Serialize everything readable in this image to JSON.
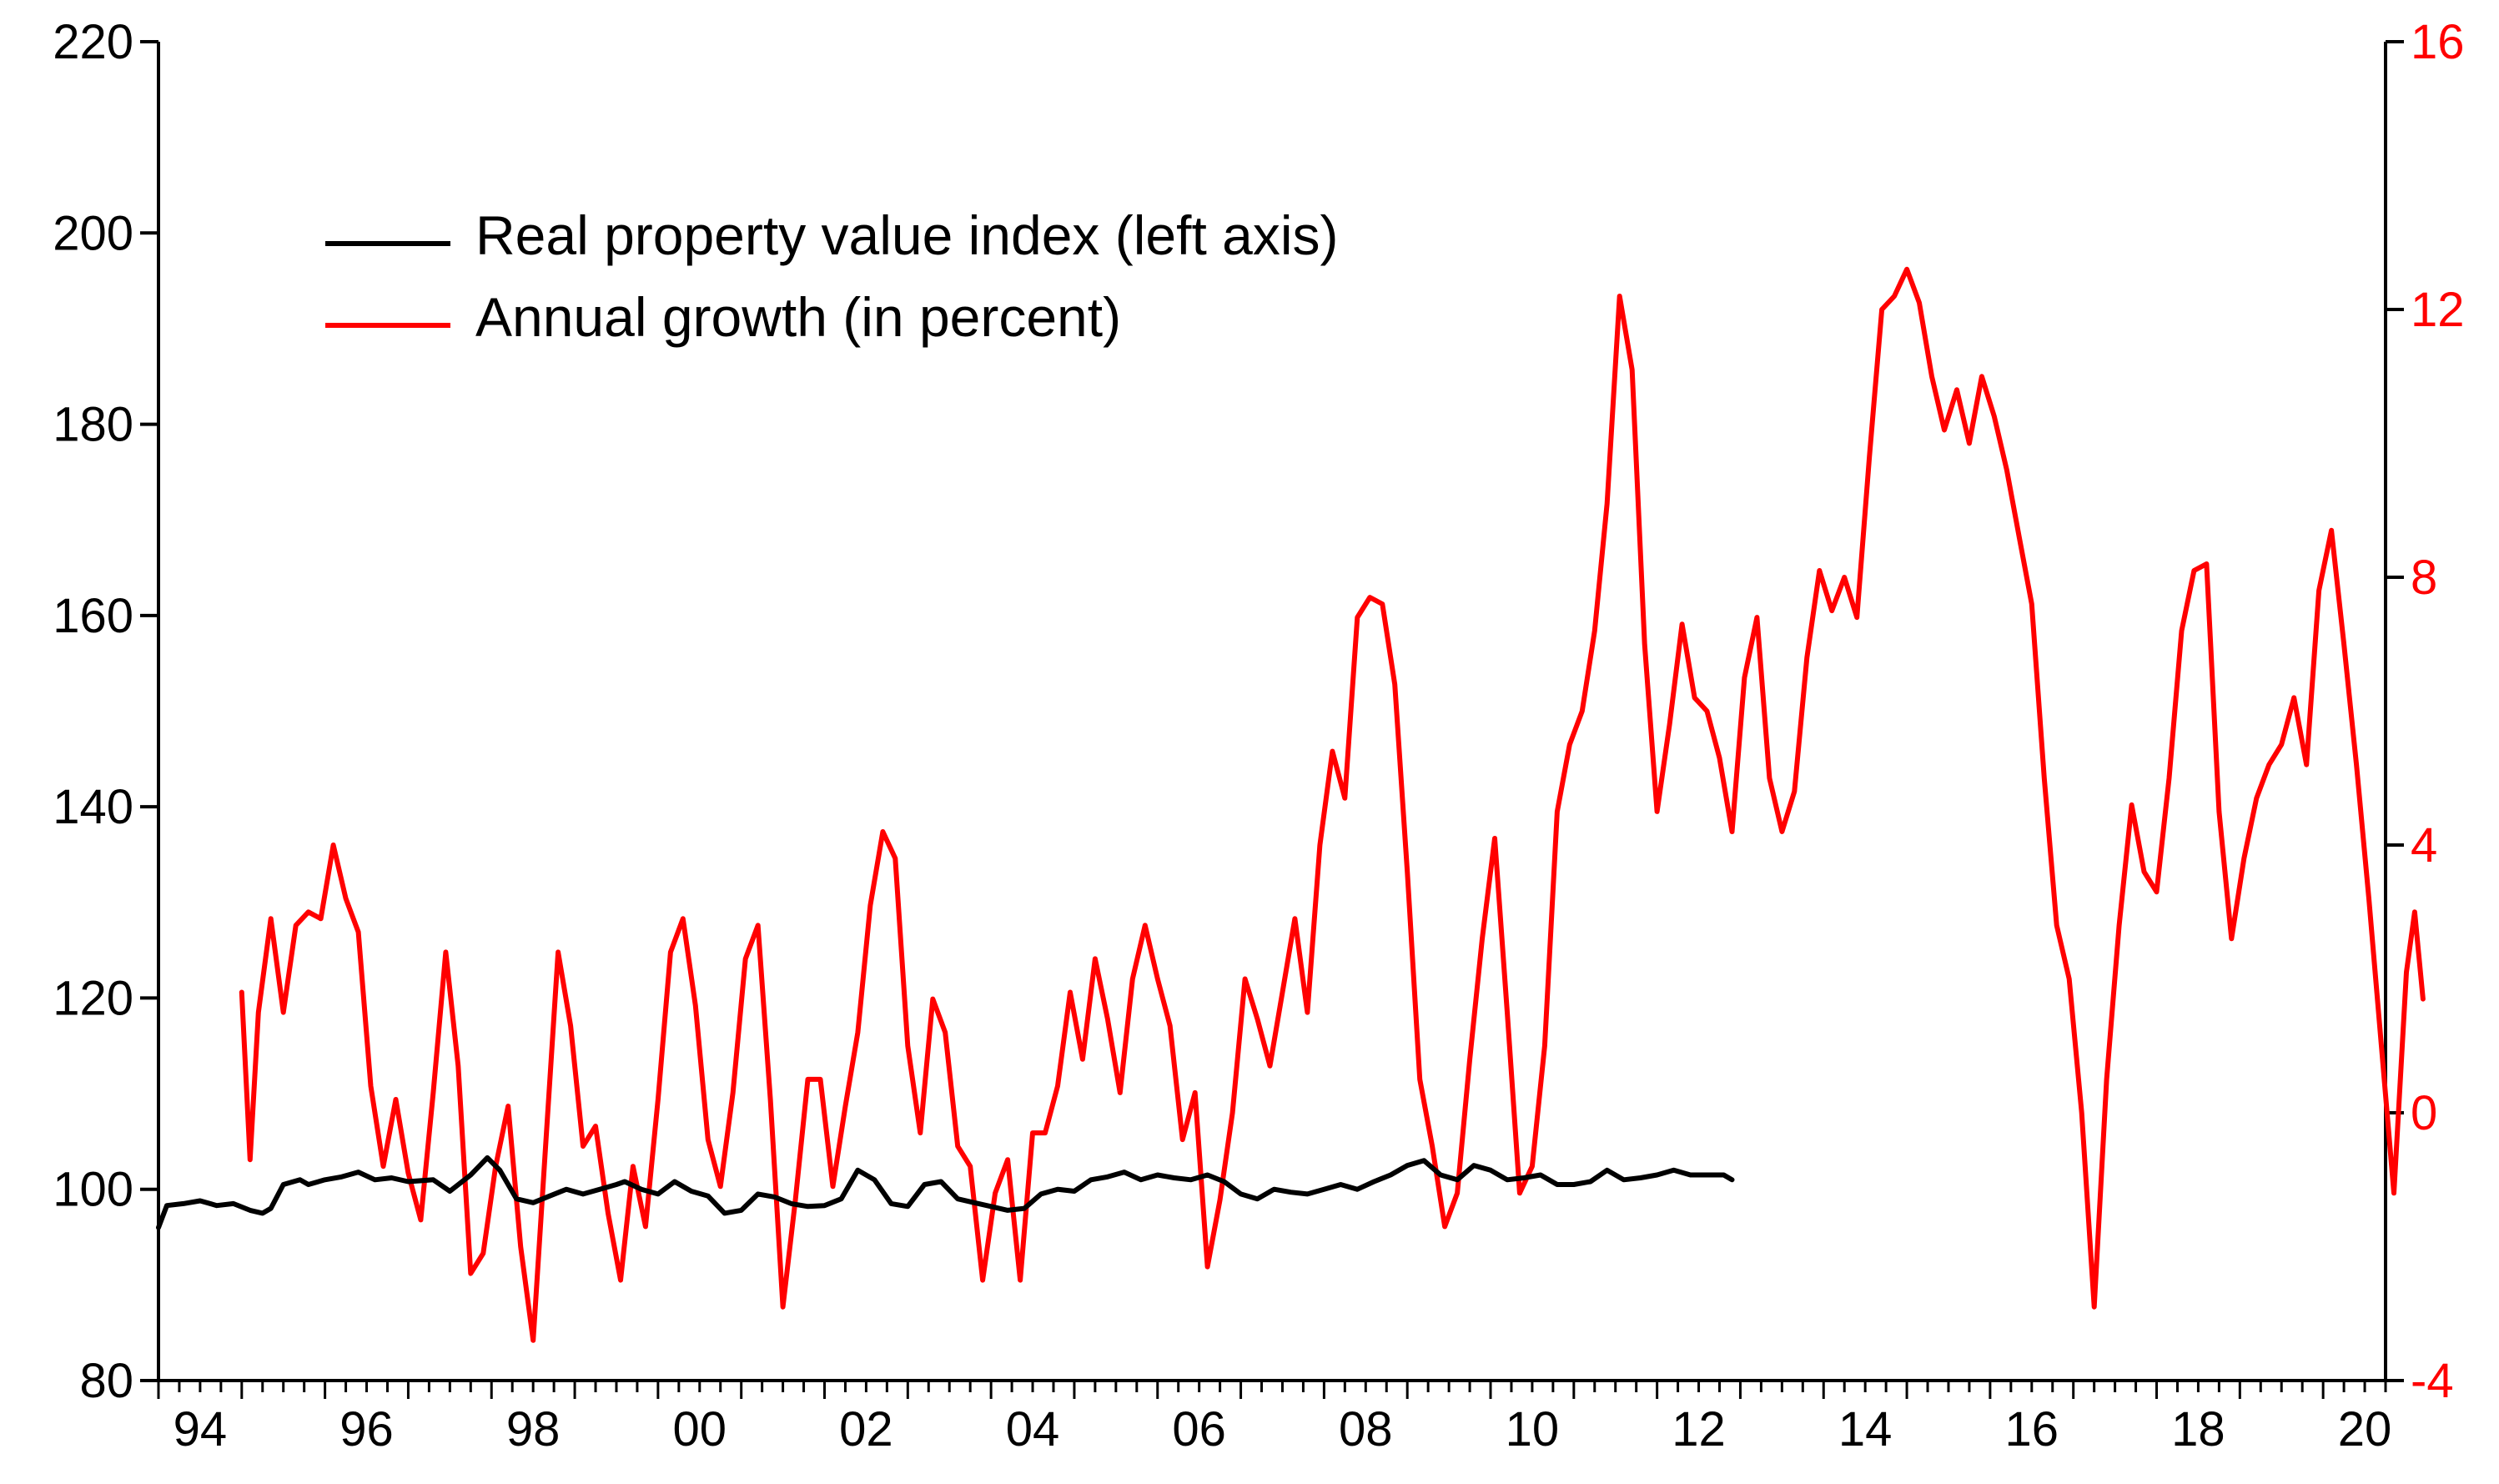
{
  "chart_data": {
    "type": "line",
    "title": "",
    "xlabel": "",
    "x_range": [
      1994.0,
      2020.75
    ],
    "x_ticks": [
      {
        "value": 1994.5,
        "label": "94"
      },
      {
        "value": 1996.5,
        "label": "96"
      },
      {
        "value": 1998.5,
        "label": "98"
      },
      {
        "value": 2000.5,
        "label": "00"
      },
      {
        "value": 2002.5,
        "label": "02"
      },
      {
        "value": 2004.5,
        "label": "04"
      },
      {
        "value": 2006.5,
        "label": "06"
      },
      {
        "value": 2008.5,
        "label": "08"
      },
      {
        "value": 2010.5,
        "label": "10"
      },
      {
        "value": 2012.5,
        "label": "12"
      },
      {
        "value": 2014.5,
        "label": "14"
      },
      {
        "value": 2016.5,
        "label": "16"
      },
      {
        "value": 2018.5,
        "label": "18"
      },
      {
        "value": 2020.5,
        "label": "20"
      }
    ],
    "left_axis": {
      "label": "",
      "ylim": [
        80,
        220
      ],
      "ticks": [
        "80",
        "100",
        "120",
        "140",
        "160",
        "180",
        "200",
        "220"
      ],
      "color": "#000000"
    },
    "right_axis": {
      "label": "",
      "ylim": [
        -4,
        16
      ],
      "ticks": [
        "-4",
        "0",
        "4",
        "8",
        "12",
        "16"
      ],
      "color": "#ff0000"
    },
    "legend": {
      "placement": "top-left",
      "entries": [
        {
          "name": "Real property value index (left axis)",
          "color": "#000000"
        },
        {
          "name": "Annual growth (in percent)",
          "color": "#ff0000"
        }
      ]
    },
    "series": [
      {
        "name": "Real property value index (left axis)",
        "axis": "left",
        "color": "#000000",
        "points": [
          [
            1994.0,
            96
          ],
          [
            1994.1,
            98.3
          ],
          [
            1994.3,
            98.5
          ],
          [
            1994.5,
            98.8
          ],
          [
            1994.7,
            98.3
          ],
          [
            1994.9,
            98.5
          ],
          [
            1995.1,
            97.8
          ],
          [
            1995.25,
            97.5
          ],
          [
            1995.35,
            98
          ],
          [
            1995.5,
            100.5
          ],
          [
            1995.7,
            101
          ],
          [
            1995.8,
            100.5
          ],
          [
            1996.0,
            101
          ],
          [
            1996.2,
            101.3
          ],
          [
            1996.4,
            101.8
          ],
          [
            1996.6,
            101
          ],
          [
            1996.8,
            101.2
          ],
          [
            1997.0,
            100.8
          ],
          [
            1997.3,
            101
          ],
          [
            1997.5,
            99.8
          ],
          [
            1997.75,
            101.5
          ],
          [
            1997.95,
            103.3
          ],
          [
            1998.1,
            102
          ],
          [
            1998.3,
            99
          ],
          [
            1998.5,
            98.6
          ],
          [
            1998.7,
            99.3
          ],
          [
            1998.9,
            100
          ],
          [
            1999.1,
            99.5
          ],
          [
            1999.3,
            100
          ],
          [
            1999.5,
            100.5
          ],
          [
            1999.6,
            100.8
          ],
          [
            1999.8,
            100
          ],
          [
            2000.0,
            99.5
          ],
          [
            2000.2,
            100.8
          ],
          [
            2000.4,
            99.8
          ],
          [
            2000.6,
            99.3
          ],
          [
            2000.8,
            97.5
          ],
          [
            2001.0,
            97.8
          ],
          [
            2001.2,
            99.5
          ],
          [
            2001.4,
            99.2
          ],
          [
            2001.6,
            98.5
          ],
          [
            2001.8,
            98.2
          ],
          [
            2002.0,
            98.3
          ],
          [
            2002.2,
            99
          ],
          [
            2002.4,
            102
          ],
          [
            2002.6,
            101
          ],
          [
            2002.8,
            98.5
          ],
          [
            2003.0,
            98.2
          ],
          [
            2003.2,
            100.5
          ],
          [
            2003.4,
            100.8
          ],
          [
            2003.6,
            99
          ],
          [
            2003.8,
            98.6
          ],
          [
            2004.0,
            98.2
          ],
          [
            2004.2,
            97.8
          ],
          [
            2004.4,
            98
          ],
          [
            2004.6,
            99.5
          ],
          [
            2004.8,
            100
          ],
          [
            2005.0,
            99.8
          ],
          [
            2005.2,
            101
          ],
          [
            2005.4,
            101.3
          ],
          [
            2005.6,
            101.8
          ],
          [
            2005.8,
            101
          ],
          [
            2006.0,
            101.5
          ],
          [
            2006.2,
            101.2
          ],
          [
            2006.4,
            101
          ],
          [
            2006.6,
            101.5
          ],
          [
            2006.8,
            100.8
          ],
          [
            2007.0,
            99.5
          ],
          [
            2007.2,
            99
          ],
          [
            2007.4,
            100
          ],
          [
            2007.6,
            99.7
          ],
          [
            2007.8,
            99.5
          ],
          [
            2008.0,
            100
          ],
          [
            2008.2,
            100.5
          ],
          [
            2008.4,
            100
          ],
          [
            2008.6,
            100.8
          ],
          [
            2008.8,
            101.5
          ],
          [
            2009.0,
            102.5
          ],
          [
            2009.2,
            103
          ],
          [
            2009.4,
            101.5
          ],
          [
            2009.6,
            101
          ],
          [
            2009.8,
            102.5
          ],
          [
            2010.0,
            102
          ],
          [
            2010.2,
            101
          ],
          [
            2010.4,
            101.2
          ],
          [
            2010.6,
            101.5
          ],
          [
            2010.8,
            100.5
          ],
          [
            2011.0,
            100.5
          ],
          [
            2011.2,
            100.8
          ],
          [
            2011.4,
            102
          ],
          [
            2011.6,
            101
          ],
          [
            2011.8,
            101.2
          ],
          [
            2012.0,
            101.5
          ],
          [
            2012.2,
            102
          ],
          [
            2012.4,
            101.5
          ],
          [
            2012.6,
            101.5
          ],
          [
            2012.8,
            101.5
          ],
          [
            2012.9,
            101
          ]
        ]
      },
      {
        "name": "Annual growth (in percent)",
        "axis": "right",
        "color": "#ff0000",
        "points": [
          [
            1995.0,
            1.8
          ],
          [
            1995.1,
            -0.7
          ],
          [
            1995.2,
            1.5
          ],
          [
            1995.35,
            2.9
          ],
          [
            1995.5,
            1.5
          ],
          [
            1995.65,
            2.8
          ],
          [
            1995.8,
            3.0
          ],
          [
            1995.95,
            2.9
          ],
          [
            1996.1,
            4.0
          ],
          [
            1996.25,
            3.2
          ],
          [
            1996.4,
            2.7
          ],
          [
            1996.55,
            0.4
          ],
          [
            1996.7,
            -0.8
          ],
          [
            1996.85,
            0.2
          ],
          [
            1997.0,
            -0.9
          ],
          [
            1997.15,
            -1.6
          ],
          [
            1997.3,
            0.3
          ],
          [
            1997.45,
            2.4
          ],
          [
            1997.6,
            0.7
          ],
          [
            1997.75,
            -2.4
          ],
          [
            1997.9,
            -2.1
          ],
          [
            1998.05,
            -0.8
          ],
          [
            1998.2,
            0.1
          ],
          [
            1998.35,
            -2.0
          ],
          [
            1998.5,
            -3.4
          ],
          [
            1998.65,
            -0.5
          ],
          [
            1998.8,
            2.4
          ],
          [
            1998.95,
            1.3
          ],
          [
            1999.1,
            -0.5
          ],
          [
            1999.25,
            -0.2
          ],
          [
            1999.4,
            -1.5
          ],
          [
            1999.55,
            -2.5
          ],
          [
            1999.7,
            -0.8
          ],
          [
            1999.85,
            -1.7
          ],
          [
            2000.0,
            0.2
          ],
          [
            2000.15,
            2.4
          ],
          [
            2000.3,
            2.9
          ],
          [
            2000.45,
            1.6
          ],
          [
            2000.6,
            -0.4
          ],
          [
            2000.75,
            -1.1
          ],
          [
            2000.9,
            0.3
          ],
          [
            2001.05,
            2.3
          ],
          [
            2001.2,
            2.8
          ],
          [
            2001.35,
            0.2
          ],
          [
            2001.5,
            -2.9
          ],
          [
            2001.65,
            -1.3
          ],
          [
            2001.8,
            0.5
          ],
          [
            2001.95,
            0.5
          ],
          [
            2002.1,
            -1.1
          ],
          [
            2002.25,
            0.1
          ],
          [
            2002.4,
            1.2
          ],
          [
            2002.55,
            3.1
          ],
          [
            2002.7,
            4.2
          ],
          [
            2002.85,
            3.8
          ],
          [
            2003.0,
            1.0
          ],
          [
            2003.15,
            -0.3
          ],
          [
            2003.3,
            1.7
          ],
          [
            2003.45,
            1.2
          ],
          [
            2003.6,
            -0.5
          ],
          [
            2003.75,
            -0.8
          ],
          [
            2003.9,
            -2.5
          ],
          [
            2004.05,
            -1.2
          ],
          [
            2004.2,
            -0.7
          ],
          [
            2004.35,
            -2.5
          ],
          [
            2004.5,
            -0.3
          ],
          [
            2004.65,
            -0.3
          ],
          [
            2004.8,
            0.4
          ],
          [
            2004.95,
            1.8
          ],
          [
            2005.1,
            0.8
          ],
          [
            2005.25,
            2.3
          ],
          [
            2005.4,
            1.4
          ],
          [
            2005.55,
            0.3
          ],
          [
            2005.7,
            2.0
          ],
          [
            2005.85,
            2.8
          ],
          [
            2006.0,
            2.0
          ],
          [
            2006.15,
            1.3
          ],
          [
            2006.3,
            -0.4
          ],
          [
            2006.45,
            0.3
          ],
          [
            2006.6,
            -2.3
          ],
          [
            2006.75,
            -1.3
          ],
          [
            2006.9,
            0.0
          ],
          [
            2007.05,
            2.0
          ],
          [
            2007.2,
            1.4
          ],
          [
            2007.35,
            0.7
          ],
          [
            2007.5,
            1.8
          ],
          [
            2007.65,
            2.9
          ],
          [
            2007.8,
            1.5
          ],
          [
            2007.95,
            4.0
          ],
          [
            2008.1,
            5.4
          ],
          [
            2008.25,
            4.7
          ],
          [
            2008.4,
            7.4
          ],
          [
            2008.55,
            7.7
          ],
          [
            2008.7,
            7.6
          ],
          [
            2008.85,
            6.4
          ],
          [
            2009.0,
            3.6
          ],
          [
            2009.15,
            0.5
          ],
          [
            2009.3,
            -0.5
          ],
          [
            2009.45,
            -1.7
          ],
          [
            2009.6,
            -1.2
          ],
          [
            2009.75,
            0.8
          ],
          [
            2009.9,
            2.6
          ],
          [
            2010.05,
            4.1
          ],
          [
            2010.2,
            1.5
          ],
          [
            2010.35,
            -1.2
          ],
          [
            2010.5,
            -0.8
          ],
          [
            2010.65,
            1.0
          ],
          [
            2010.8,
            4.5
          ],
          [
            2010.95,
            5.5
          ],
          [
            2011.1,
            6.0
          ],
          [
            2011.25,
            7.2
          ],
          [
            2011.4,
            9.1
          ],
          [
            2011.55,
            12.2
          ],
          [
            2011.7,
            11.1
          ],
          [
            2011.85,
            7.0
          ],
          [
            2012.0,
            4.5
          ],
          [
            2012.15,
            5.8
          ],
          [
            2012.3,
            7.3
          ],
          [
            2012.45,
            6.2
          ],
          [
            2012.6,
            6.0
          ],
          [
            2012.75,
            5.3
          ],
          [
            2012.9,
            4.2
          ],
          [
            2013.05,
            6.5
          ],
          [
            2013.2,
            7.4
          ],
          [
            2013.35,
            5.0
          ],
          [
            2013.5,
            4.2
          ],
          [
            2013.65,
            4.8
          ],
          [
            2013.8,
            6.8
          ],
          [
            2013.95,
            8.1
          ],
          [
            2014.1,
            7.5
          ],
          [
            2014.25,
            8.0
          ],
          [
            2014.4,
            7.4
          ],
          [
            2014.55,
            9.8
          ],
          [
            2014.7,
            12.0
          ],
          [
            2014.85,
            12.2
          ],
          [
            2015.0,
            12.6
          ],
          [
            2015.15,
            12.1
          ],
          [
            2015.3,
            11.0
          ],
          [
            2015.45,
            10.2
          ],
          [
            2015.6,
            10.8
          ],
          [
            2015.75,
            10.0
          ],
          [
            2015.9,
            11.0
          ],
          [
            2016.05,
            10.4
          ],
          [
            2016.2,
            9.6
          ],
          [
            2016.35,
            8.6
          ],
          [
            2016.5,
            7.6
          ],
          [
            2016.65,
            5.0
          ],
          [
            2016.8,
            2.8
          ],
          [
            2016.95,
            2.0
          ],
          [
            2017.1,
            0.0
          ],
          [
            2017.25,
            -2.9
          ],
          [
            2017.4,
            0.5
          ],
          [
            2017.55,
            2.8
          ],
          [
            2017.7,
            4.6
          ],
          [
            2017.85,
            3.6
          ],
          [
            2018.0,
            3.3
          ],
          [
            2018.15,
            5.0
          ],
          [
            2018.3,
            7.2
          ],
          [
            2018.45,
            8.1
          ],
          [
            2018.6,
            8.2
          ],
          [
            2018.75,
            4.5
          ],
          [
            2018.9,
            2.6
          ],
          [
            2019.05,
            3.8
          ],
          [
            2019.2,
            4.7
          ],
          [
            2019.35,
            5.2
          ],
          [
            2019.5,
            5.5
          ],
          [
            2019.65,
            6.2
          ],
          [
            2019.8,
            5.2
          ],
          [
            2019.95,
            7.8
          ],
          [
            2020.1,
            8.7
          ],
          [
            2020.25,
            7.0
          ],
          [
            2020.4,
            5.2
          ],
          [
            2020.55,
            3.2
          ],
          [
            2020.7,
            1.0
          ],
          [
            2020.85,
            -1.2
          ],
          [
            2021.0,
            2.1
          ],
          [
            2021.1,
            3.0
          ],
          [
            2021.2,
            1.7
          ]
        ]
      }
    ]
  }
}
